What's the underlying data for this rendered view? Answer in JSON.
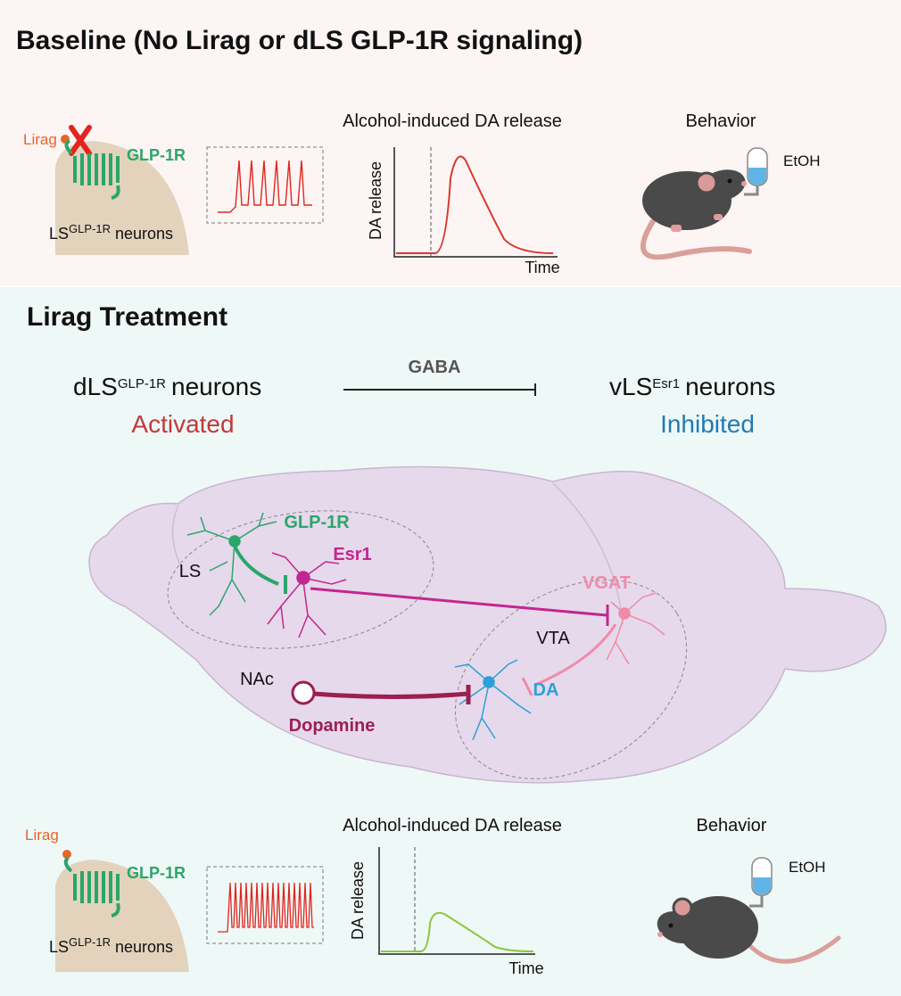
{
  "baseline": {
    "title": "Baseline (No Lirag or dLS GLP-1R signaling)",
    "ligand": "Lirag",
    "receptor": "GLP-1R",
    "cell_label": {
      "base": "LS",
      "sup": "GLP-1R",
      "rest": "neurons"
    },
    "plot": {
      "title": "Alcohol-induced DA release",
      "y_label": "DA release",
      "x_label": "Time"
    },
    "behavior": {
      "title": "Behavior",
      "bottle_label": "EtOH"
    }
  },
  "treatment": {
    "title": "Lirag Treatment",
    "source": {
      "base": "dLS",
      "sup": "GLP-1R",
      "rest": "neurons",
      "state": "Activated"
    },
    "transmitter": "GABA",
    "target": {
      "base": "vLS",
      "sup": "Esr1",
      "rest": "neurons",
      "state": "Inhibited"
    },
    "brain": {
      "glp1r": "GLP-1R",
      "esr1": "Esr1",
      "ls": "LS",
      "vgat": "VGAT",
      "vta": "VTA",
      "nac": "NAc",
      "da": "DA",
      "dopamine": "Dopamine"
    },
    "ligand": "Lirag",
    "receptor": "GLP-1R",
    "cell_label": {
      "base": "LS",
      "sup": "GLP-1R",
      "rest": "neurons"
    },
    "plot": {
      "title": "Alcohol-induced DA release",
      "y_label": "DA release",
      "x_label": "Time"
    },
    "behavior": {
      "title": "Behavior",
      "bottle_label": "EtOH"
    }
  }
}
